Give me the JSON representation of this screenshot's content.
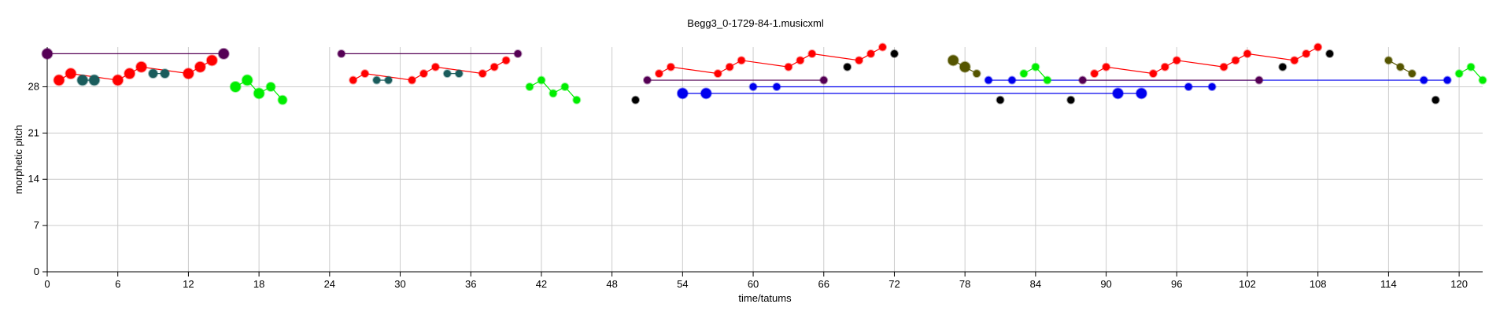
{
  "chart_data": {
    "type": "scatter",
    "title": "Begg3_0-1729-84-1.musicxml",
    "xlabel": "time/tatums",
    "ylabel": "morphetic pitch",
    "xlim": [
      0,
      122
    ],
    "ylim": [
      0,
      34
    ],
    "xticks": [
      0,
      6,
      12,
      18,
      24,
      30,
      36,
      42,
      48,
      54,
      60,
      66,
      72,
      78,
      84,
      90,
      96,
      102,
      108,
      114,
      120
    ],
    "yticks": [
      0,
      7,
      14,
      21,
      28
    ],
    "grid": true,
    "colors": {
      "red": "#ff0000",
      "purple": "#550055",
      "teal": "#1a5c5c",
      "green": "#00ee00",
      "black": "#000000",
      "blue": "#0000ee",
      "olive": "#555500",
      "gridline": "#cccccc"
    },
    "segments": [
      {
        "color": "purple",
        "x": [
          0,
          15
        ],
        "y": [
          33,
          33
        ]
      },
      {
        "color": "red",
        "x": [
          1,
          2,
          6,
          7,
          8,
          12,
          13,
          14
        ],
        "y": [
          29,
          30,
          29,
          30,
          31,
          30,
          31,
          32
        ]
      },
      {
        "color": "teal",
        "x": [
          3,
          4
        ],
        "y": [
          29,
          29
        ]
      },
      {
        "color": "teal",
        "x": [
          9,
          10
        ],
        "y": [
          30,
          30
        ]
      },
      {
        "color": "green",
        "x": [
          16,
          17,
          18,
          19,
          20
        ],
        "y": [
          28,
          29,
          27,
          28,
          26
        ]
      },
      {
        "color": "purple",
        "x": [
          25,
          40
        ],
        "y": [
          33,
          33
        ]
      },
      {
        "color": "red",
        "x": [
          26,
          27,
          31,
          32,
          33,
          37,
          38,
          39
        ],
        "y": [
          29,
          30,
          29,
          30,
          31,
          30,
          31,
          32
        ]
      },
      {
        "color": "teal",
        "x": [
          28,
          29
        ],
        "y": [
          29,
          29
        ]
      },
      {
        "color": "teal",
        "x": [
          34,
          35
        ],
        "y": [
          30,
          30
        ]
      },
      {
        "color": "green",
        "x": [
          41,
          42,
          43,
          44,
          45
        ],
        "y": [
          28,
          29,
          27,
          28,
          26
        ]
      },
      {
        "color": "purple",
        "x": [
          51,
          66
        ],
        "y": [
          29,
          29
        ]
      },
      {
        "color": "red",
        "x": [
          52,
          53,
          57,
          58,
          59,
          63,
          64,
          65,
          69,
          70,
          71
        ],
        "y": [
          30,
          31,
          30,
          31,
          32,
          31,
          32,
          33,
          32,
          33,
          34
        ]
      },
      {
        "color": "blue",
        "x": [
          54,
          56,
          91,
          93
        ],
        "y": [
          27,
          27,
          27,
          27
        ]
      },
      {
        "color": "blue",
        "x": [
          60,
          62,
          97,
          99
        ],
        "y": [
          28,
          28,
          28,
          28
        ]
      },
      {
        "color": "olive",
        "x": [
          77,
          78,
          79
        ],
        "y": [
          32,
          31,
          30
        ]
      },
      {
        "color": "blue",
        "x": [
          80,
          82,
          117,
          119
        ],
        "y": [
          29,
          29,
          29,
          29
        ]
      },
      {
        "color": "green",
        "x": [
          83,
          84,
          85
        ],
        "y": [
          30,
          31,
          29
        ]
      },
      {
        "color": "purple",
        "x": [
          88,
          103
        ],
        "y": [
          29,
          29
        ]
      },
      {
        "color": "red",
        "x": [
          89,
          90,
          94,
          95,
          96,
          100,
          101,
          102,
          106,
          107,
          108
        ],
        "y": [
          30,
          31,
          30,
          31,
          32,
          31,
          32,
          33,
          32,
          33,
          34
        ]
      },
      {
        "color": "olive",
        "x": [
          114,
          115,
          116
        ],
        "y": [
          32,
          31,
          30
        ]
      },
      {
        "color": "green",
        "x": [
          120,
          121,
          122
        ],
        "y": [
          30,
          31,
          29
        ]
      }
    ],
    "points": [
      {
        "color": "purple",
        "x": 0,
        "y": 33,
        "s": "l"
      },
      {
        "color": "purple",
        "x": 15,
        "y": 33,
        "s": "l"
      },
      {
        "color": "red",
        "x": 1,
        "y": 29,
        "s": "l"
      },
      {
        "color": "red",
        "x": 2,
        "y": 30,
        "s": "l"
      },
      {
        "color": "teal",
        "x": 3,
        "y": 29,
        "s": "l"
      },
      {
        "color": "teal",
        "x": 4,
        "y": 29,
        "s": "l"
      },
      {
        "color": "red",
        "x": 6,
        "y": 29,
        "s": "l"
      },
      {
        "color": "red",
        "x": 7,
        "y": 30,
        "s": "l"
      },
      {
        "color": "red",
        "x": 8,
        "y": 31,
        "s": "l"
      },
      {
        "color": "teal",
        "x": 9,
        "y": 30,
        "s": "m"
      },
      {
        "color": "teal",
        "x": 10,
        "y": 30,
        "s": "m"
      },
      {
        "color": "red",
        "x": 12,
        "y": 30,
        "s": "l"
      },
      {
        "color": "red",
        "x": 13,
        "y": 31,
        "s": "l"
      },
      {
        "color": "red",
        "x": 14,
        "y": 32,
        "s": "l"
      },
      {
        "color": "green",
        "x": 16,
        "y": 28,
        "s": "l"
      },
      {
        "color": "green",
        "x": 17,
        "y": 29,
        "s": "l"
      },
      {
        "color": "green",
        "x": 18,
        "y": 27,
        "s": "l"
      },
      {
        "color": "green",
        "x": 19,
        "y": 28,
        "s": "m"
      },
      {
        "color": "green",
        "x": 20,
        "y": 26,
        "s": "m"
      },
      {
        "color": "purple",
        "x": 25,
        "y": 33,
        "s": "s"
      },
      {
        "color": "purple",
        "x": 40,
        "y": 33,
        "s": "s"
      },
      {
        "color": "red",
        "x": 26,
        "y": 29,
        "s": "s"
      },
      {
        "color": "red",
        "x": 27,
        "y": 30,
        "s": "s"
      },
      {
        "color": "teal",
        "x": 28,
        "y": 29,
        "s": "s"
      },
      {
        "color": "teal",
        "x": 29,
        "y": 29,
        "s": "s"
      },
      {
        "color": "red",
        "x": 31,
        "y": 29,
        "s": "s"
      },
      {
        "color": "red",
        "x": 32,
        "y": 30,
        "s": "s"
      },
      {
        "color": "red",
        "x": 33,
        "y": 31,
        "s": "s"
      },
      {
        "color": "teal",
        "x": 34,
        "y": 30,
        "s": "s"
      },
      {
        "color": "teal",
        "x": 35,
        "y": 30,
        "s": "s"
      },
      {
        "color": "red",
        "x": 37,
        "y": 30,
        "s": "s"
      },
      {
        "color": "red",
        "x": 38,
        "y": 31,
        "s": "s"
      },
      {
        "color": "red",
        "x": 39,
        "y": 32,
        "s": "s"
      },
      {
        "color": "green",
        "x": 41,
        "y": 28,
        "s": "s"
      },
      {
        "color": "green",
        "x": 42,
        "y": 29,
        "s": "s"
      },
      {
        "color": "green",
        "x": 43,
        "y": 27,
        "s": "s"
      },
      {
        "color": "green",
        "x": 44,
        "y": 28,
        "s": "s"
      },
      {
        "color": "green",
        "x": 45,
        "y": 26,
        "s": "s"
      },
      {
        "color": "black",
        "x": 50,
        "y": 26,
        "s": "s"
      },
      {
        "color": "purple",
        "x": 51,
        "y": 29,
        "s": "s"
      },
      {
        "color": "purple",
        "x": 66,
        "y": 29,
        "s": "s"
      },
      {
        "color": "red",
        "x": 52,
        "y": 30,
        "s": "s"
      },
      {
        "color": "red",
        "x": 53,
        "y": 31,
        "s": "s"
      },
      {
        "color": "blue",
        "x": 54,
        "y": 27,
        "s": "l"
      },
      {
        "color": "blue",
        "x": 56,
        "y": 27,
        "s": "l"
      },
      {
        "color": "red",
        "x": 57,
        "y": 30,
        "s": "s"
      },
      {
        "color": "red",
        "x": 58,
        "y": 31,
        "s": "s"
      },
      {
        "color": "red",
        "x": 59,
        "y": 32,
        "s": "s"
      },
      {
        "color": "blue",
        "x": 60,
        "y": 28,
        "s": "s"
      },
      {
        "color": "blue",
        "x": 62,
        "y": 28,
        "s": "s"
      },
      {
        "color": "red",
        "x": 63,
        "y": 31,
        "s": "s"
      },
      {
        "color": "red",
        "x": 64,
        "y": 32,
        "s": "s"
      },
      {
        "color": "red",
        "x": 65,
        "y": 33,
        "s": "s"
      },
      {
        "color": "black",
        "x": 68,
        "y": 31,
        "s": "s"
      },
      {
        "color": "red",
        "x": 69,
        "y": 32,
        "s": "s"
      },
      {
        "color": "red",
        "x": 70,
        "y": 33,
        "s": "s"
      },
      {
        "color": "red",
        "x": 71,
        "y": 34,
        "s": "s"
      },
      {
        "color": "black",
        "x": 72,
        "y": 33,
        "s": "s"
      },
      {
        "color": "olive",
        "x": 77,
        "y": 32,
        "s": "l"
      },
      {
        "color": "olive",
        "x": 78,
        "y": 31,
        "s": "l"
      },
      {
        "color": "olive",
        "x": 79,
        "y": 30,
        "s": "s"
      },
      {
        "color": "blue",
        "x": 80,
        "y": 29,
        "s": "s"
      },
      {
        "color": "black",
        "x": 81,
        "y": 26,
        "s": "s"
      },
      {
        "color": "blue",
        "x": 82,
        "y": 29,
        "s": "s"
      },
      {
        "color": "green",
        "x": 83,
        "y": 30,
        "s": "s"
      },
      {
        "color": "green",
        "x": 84,
        "y": 31,
        "s": "s"
      },
      {
        "color": "green",
        "x": 85,
        "y": 29,
        "s": "s"
      },
      {
        "color": "black",
        "x": 87,
        "y": 26,
        "s": "s"
      },
      {
        "color": "purple",
        "x": 88,
        "y": 29,
        "s": "s"
      },
      {
        "color": "purple",
        "x": 103,
        "y": 29,
        "s": "s"
      },
      {
        "color": "red",
        "x": 89,
        "y": 30,
        "s": "s"
      },
      {
        "color": "red",
        "x": 90,
        "y": 31,
        "s": "s"
      },
      {
        "color": "blue",
        "x": 91,
        "y": 27,
        "s": "l"
      },
      {
        "color": "blue",
        "x": 93,
        "y": 27,
        "s": "l"
      },
      {
        "color": "red",
        "x": 94,
        "y": 30,
        "s": "s"
      },
      {
        "color": "red",
        "x": 95,
        "y": 31,
        "s": "s"
      },
      {
        "color": "red",
        "x": 96,
        "y": 32,
        "s": "s"
      },
      {
        "color": "blue",
        "x": 97,
        "y": 28,
        "s": "s"
      },
      {
        "color": "blue",
        "x": 99,
        "y": 28,
        "s": "s"
      },
      {
        "color": "red",
        "x": 100,
        "y": 31,
        "s": "s"
      },
      {
        "color": "red",
        "x": 101,
        "y": 32,
        "s": "s"
      },
      {
        "color": "red",
        "x": 102,
        "y": 33,
        "s": "s"
      },
      {
        "color": "black",
        "x": 105,
        "y": 31,
        "s": "s"
      },
      {
        "color": "red",
        "x": 106,
        "y": 32,
        "s": "s"
      },
      {
        "color": "red",
        "x": 107,
        "y": 33,
        "s": "s"
      },
      {
        "color": "red",
        "x": 108,
        "y": 34,
        "s": "s"
      },
      {
        "color": "black",
        "x": 109,
        "y": 33,
        "s": "s"
      },
      {
        "color": "olive",
        "x": 114,
        "y": 32,
        "s": "s"
      },
      {
        "color": "olive",
        "x": 115,
        "y": 31,
        "s": "s"
      },
      {
        "color": "olive",
        "x": 116,
        "y": 30,
        "s": "s"
      },
      {
        "color": "blue",
        "x": 117,
        "y": 29,
        "s": "s"
      },
      {
        "color": "black",
        "x": 118,
        "y": 26,
        "s": "s"
      },
      {
        "color": "blue",
        "x": 119,
        "y": 29,
        "s": "s"
      },
      {
        "color": "green",
        "x": 120,
        "y": 30,
        "s": "s"
      },
      {
        "color": "green",
        "x": 121,
        "y": 31,
        "s": "s"
      },
      {
        "color": "green",
        "x": 122,
        "y": 29,
        "s": "s"
      }
    ]
  }
}
